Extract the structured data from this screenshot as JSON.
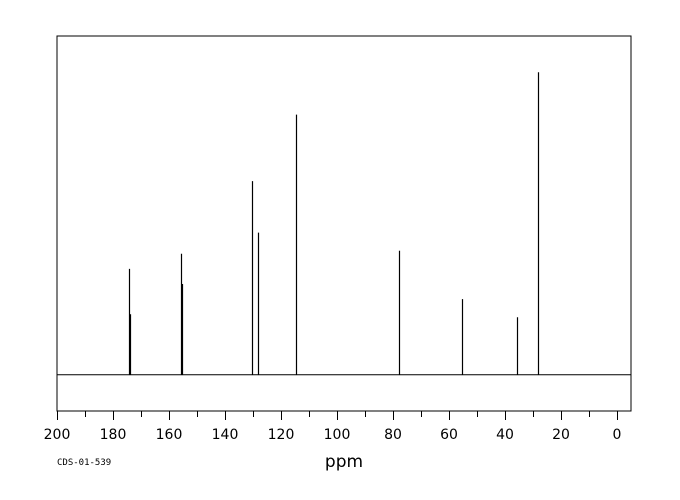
{
  "chart_data": {
    "type": "line",
    "subtype": "nmr-stick-spectrum",
    "title": "",
    "xlabel": "ppm",
    "ylabel": "",
    "spectrum_id": "CDS-01-539",
    "xlim": [
      200,
      -5
    ],
    "x_reversed": true,
    "ylim": [
      -12,
      112
    ],
    "grid": false,
    "legend": "none",
    "colors": {
      "line": "#000000",
      "frame": "#000000",
      "background": "#ffffff"
    },
    "x_ticks": {
      "major": [
        200,
        180,
        160,
        140,
        120,
        100,
        80,
        60,
        40,
        20,
        0
      ],
      "major_labels": [
        "200",
        "180",
        "160",
        "140",
        "120",
        "100",
        "80",
        "60",
        "40",
        "20",
        "0"
      ],
      "minor": [
        190,
        170,
        150,
        130,
        110,
        90,
        70,
        50,
        30,
        10
      ]
    },
    "peaks": [
      {
        "ppm": 174.3,
        "intensity": 35
      },
      {
        "ppm": 174.0,
        "intensity": 20
      },
      {
        "ppm": 155.7,
        "intensity": 40
      },
      {
        "ppm": 155.4,
        "intensity": 30
      },
      {
        "ppm": 130.2,
        "intensity": 64
      },
      {
        "ppm": 128.3,
        "intensity": 47
      },
      {
        "ppm": 114.8,
        "intensity": 86
      },
      {
        "ppm": 77.8,
        "intensity": 41
      },
      {
        "ppm": 55.4,
        "intensity": 25
      },
      {
        "ppm": 35.7,
        "intensity": 19
      },
      {
        "ppm": 28.2,
        "intensity": 100
      }
    ]
  }
}
